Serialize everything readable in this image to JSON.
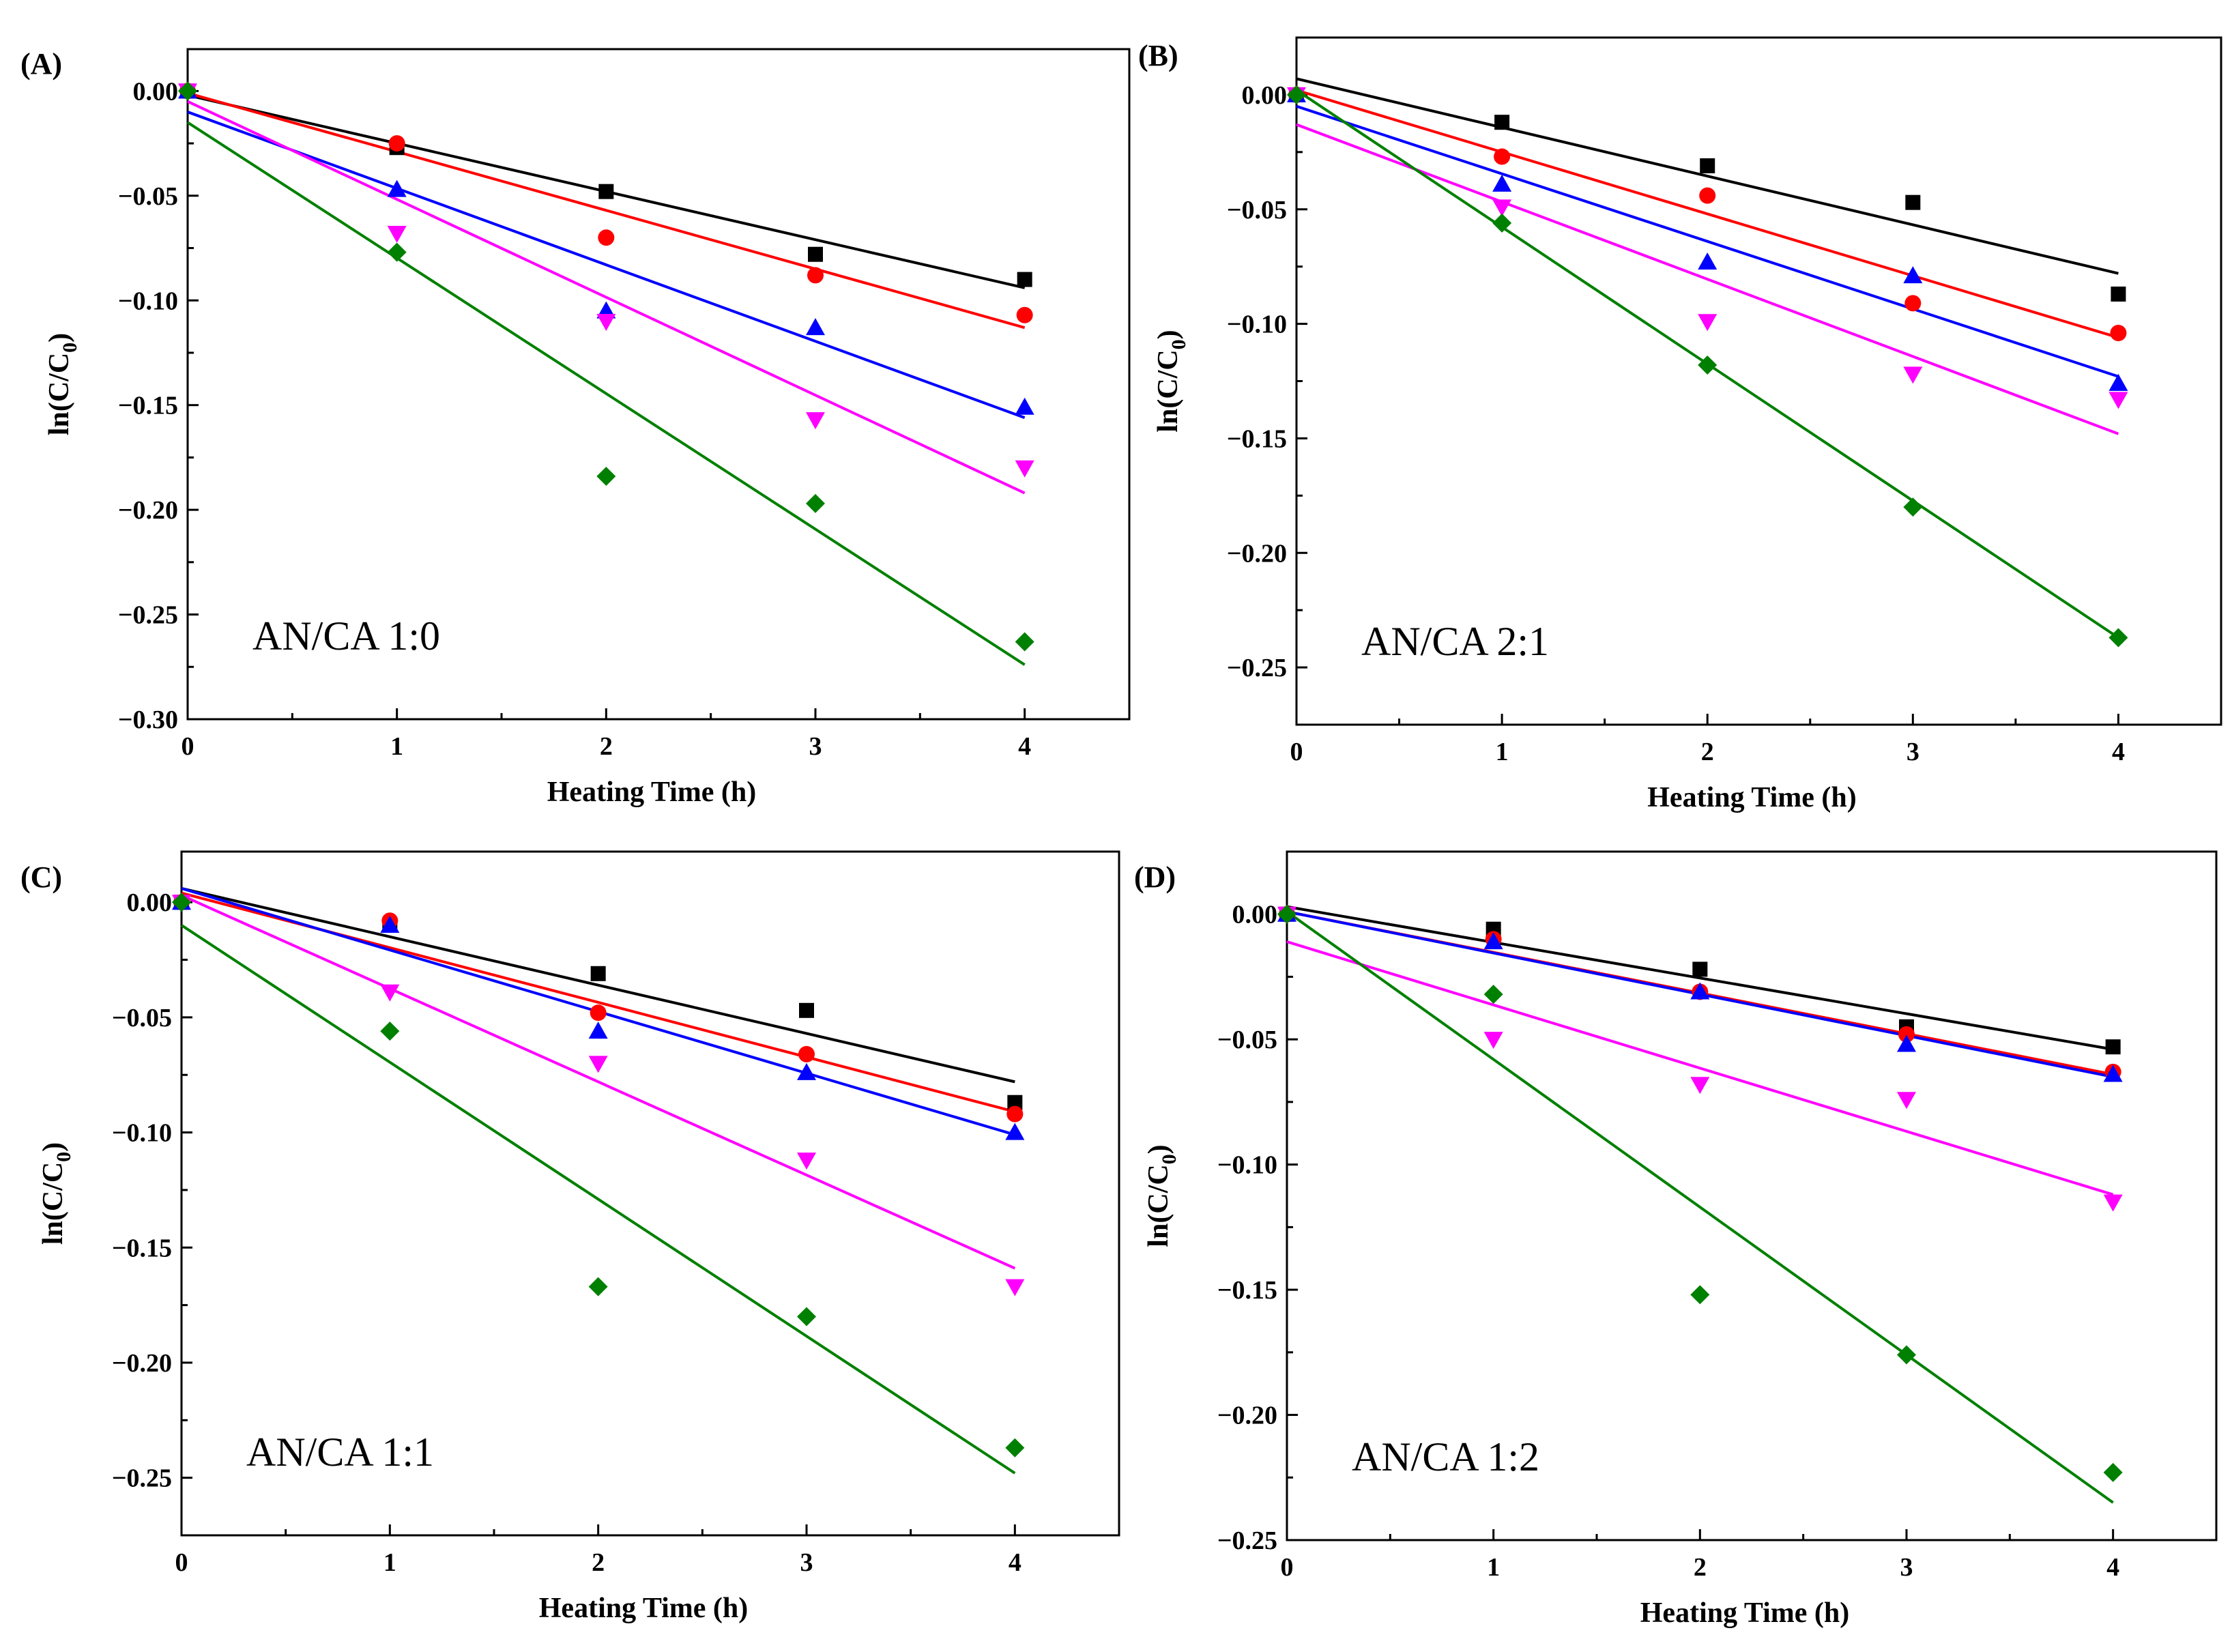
{
  "chart_data": [
    {
      "type": "scatter",
      "panel_tag": "(A)",
      "panel_label": "AN/CA 1:0",
      "xlabel": "Heating Time (h)",
      "ylabel": "ln(C/C0)",
      "ylabel_parts": {
        "main": "ln(C/C",
        "sub": "0",
        "close": ")"
      },
      "xlim": [
        0,
        4.5
      ],
      "ylim": [
        -0.3,
        0.02
      ],
      "xticks": [
        0,
        1,
        2,
        3,
        4
      ],
      "xtick_labels": [
        "0",
        "1",
        "2",
        "3",
        "4"
      ],
      "yticks": [
        0.0,
        -0.05,
        -0.1,
        -0.15,
        -0.2,
        -0.25,
        -0.3
      ],
      "ytick_labels": [
        "0.00",
        "−0.05",
        "−0.10",
        "−0.15",
        "−0.20",
        "−0.25",
        "−0.30"
      ],
      "x": [
        0,
        1,
        2,
        3,
        4
      ],
      "series": [
        {
          "name": "black-squares",
          "marker": "square",
          "color": "#000000",
          "values": [
            0.0,
            -0.027,
            -0.048,
            -0.078,
            -0.09
          ],
          "fit": [
            -0.002,
            -0.094
          ]
        },
        {
          "name": "red-circles",
          "marker": "circle",
          "color": "#ff0000",
          "values": [
            0.0,
            -0.025,
            -0.07,
            -0.088,
            -0.107
          ],
          "fit": [
            -0.001,
            -0.113
          ]
        },
        {
          "name": "blue-triangles",
          "marker": "triangle-up",
          "color": "#0000ff",
          "values": [
            0.0,
            -0.047,
            -0.105,
            -0.113,
            -0.151
          ],
          "fit": [
            -0.01,
            -0.156
          ]
        },
        {
          "name": "magenta-triangles",
          "marker": "triangle-down",
          "color": "#ff00ff",
          "values": [
            0.0,
            -0.068,
            -0.11,
            -0.157,
            -0.18
          ],
          "fit": [
            -0.005,
            -0.192
          ]
        },
        {
          "name": "green-diamonds",
          "marker": "diamond",
          "color": "#008000",
          "values": [
            0.0,
            -0.077,
            -0.184,
            -0.197,
            -0.263
          ],
          "fit": [
            -0.015,
            -0.274
          ]
        }
      ]
    },
    {
      "type": "scatter",
      "panel_tag": "(B)",
      "panel_label": "AN/CA 2:1",
      "xlabel": "Heating Time (h)",
      "ylabel": "ln(C/C0)",
      "ylabel_parts": {
        "main": "ln(C/C",
        "sub": "0",
        "close": ")"
      },
      "xlim": [
        0,
        4.5
      ],
      "ylim": [
        -0.275,
        0.025
      ],
      "xticks": [
        0,
        1,
        2,
        3,
        4
      ],
      "xtick_labels": [
        "0",
        "1",
        "2",
        "3",
        "4"
      ],
      "yticks": [
        0.0,
        -0.05,
        -0.1,
        -0.15,
        -0.2,
        -0.25
      ],
      "ytick_labels": [
        "0.00",
        "−0.05",
        "−0.10",
        "−0.15",
        "−0.20",
        "−0.25"
      ],
      "x": [
        0,
        1,
        2,
        3,
        4
      ],
      "series": [
        {
          "name": "black-squares",
          "marker": "square",
          "color": "#000000",
          "values": [
            0.0,
            -0.012,
            -0.031,
            -0.047,
            -0.087
          ],
          "fit": [
            0.007,
            -0.078
          ]
        },
        {
          "name": "red-circles",
          "marker": "circle",
          "color": "#ff0000",
          "values": [
            0.0,
            -0.027,
            -0.044,
            -0.091,
            -0.104
          ],
          "fit": [
            0.002,
            -0.106
          ]
        },
        {
          "name": "blue-triangles",
          "marker": "triangle-up",
          "color": "#0000ff",
          "values": [
            0.0,
            -0.039,
            -0.073,
            -0.079,
            -0.126
          ],
          "fit": [
            -0.005,
            -0.123
          ]
        },
        {
          "name": "magenta-triangles",
          "marker": "triangle-down",
          "color": "#ff00ff",
          "values": [
            0.0,
            -0.049,
            -0.099,
            -0.122,
            -0.133
          ],
          "fit": [
            -0.013,
            -0.148
          ]
        },
        {
          "name": "green-diamonds",
          "marker": "diamond",
          "color": "#008000",
          "values": [
            0.0,
            -0.056,
            -0.118,
            -0.18,
            -0.237
          ],
          "fit": [
            0.002,
            -0.237
          ]
        }
      ]
    },
    {
      "type": "scatter",
      "panel_tag": "(C)",
      "panel_label": "AN/CA 1:1",
      "xlabel": "Heating Time (h)",
      "ylabel": "ln(C/C0)",
      "ylabel_parts": {
        "main": "ln(C/C",
        "sub": "0",
        "close": ")"
      },
      "xlim": [
        0,
        4.5
      ],
      "ylim": [
        -0.275,
        0.022
      ],
      "xticks": [
        0,
        1,
        2,
        3,
        4
      ],
      "xtick_labels": [
        "0",
        "1",
        "2",
        "3",
        "4"
      ],
      "yticks": [
        0.0,
        -0.05,
        -0.1,
        -0.15,
        -0.2,
        -0.25
      ],
      "ytick_labels": [
        "0.00",
        "−0.05",
        "−0.10",
        "−0.15",
        "−0.20",
        "−0.25"
      ],
      "x": [
        0,
        1,
        2,
        3,
        4
      ],
      "series": [
        {
          "name": "black-squares",
          "marker": "square",
          "color": "#000000",
          "values": [
            0.0,
            -0.01,
            -0.031,
            -0.047,
            -0.087
          ],
          "fit": [
            0.006,
            -0.078
          ]
        },
        {
          "name": "red-circles",
          "marker": "circle",
          "color": "#ff0000",
          "values": [
            0.0,
            -0.008,
            -0.048,
            -0.066,
            -0.092
          ],
          "fit": [
            0.004,
            -0.091
          ]
        },
        {
          "name": "blue-triangles",
          "marker": "triangle-up",
          "color": "#0000ff",
          "values": [
            0.0,
            -0.01,
            -0.056,
            -0.074,
            -0.1
          ],
          "fit": [
            0.006,
            -0.101
          ]
        },
        {
          "name": "magenta-triangles",
          "marker": "triangle-down",
          "color": "#ff00ff",
          "values": [
            0.0,
            -0.039,
            -0.07,
            -0.112,
            -0.167
          ],
          "fit": [
            0.003,
            -0.159
          ]
        },
        {
          "name": "green-diamonds",
          "marker": "diamond",
          "color": "#008000",
          "values": [
            0.0,
            -0.056,
            -0.167,
            -0.18,
            -0.237
          ],
          "fit": [
            -0.01,
            -0.248
          ]
        }
      ]
    },
    {
      "type": "scatter",
      "panel_tag": "(D)",
      "panel_label": "AN/CA 1:2",
      "xlabel": "Heating Time (h)",
      "ylabel": "ln(C/C0)",
      "ylabel_parts": {
        "main": "ln(C/C",
        "sub": "0",
        "close": ")"
      },
      "xlim": [
        0,
        4.5
      ],
      "ylim": [
        -0.25,
        0.025
      ],
      "xticks": [
        0,
        1,
        2,
        3,
        4
      ],
      "xtick_labels": [
        "0",
        "1",
        "2",
        "3",
        "4"
      ],
      "yticks": [
        0.0,
        -0.05,
        -0.1,
        -0.15,
        -0.2,
        -0.25
      ],
      "ytick_labels": [
        "0.00",
        "−0.05",
        "−0.10",
        "−0.15",
        "−0.20",
        "−0.25"
      ],
      "x": [
        0,
        1,
        2,
        3,
        4
      ],
      "series": [
        {
          "name": "black-squares",
          "marker": "square",
          "color": "#000000",
          "values": [
            0.0,
            -0.006,
            -0.022,
            -0.045,
            -0.053
          ],
          "fit": [
            0.003,
            -0.054
          ]
        },
        {
          "name": "red-circles",
          "marker": "circle",
          "color": "#ff0000",
          "values": [
            0.0,
            -0.01,
            -0.031,
            -0.048,
            -0.063
          ],
          "fit": [
            0.001,
            -0.064
          ]
        },
        {
          "name": "blue-triangles",
          "marker": "triangle-up",
          "color": "#0000ff",
          "values": [
            0.0,
            -0.011,
            -0.031,
            -0.052,
            -0.064
          ],
          "fit": [
            0.001,
            -0.065
          ]
        },
        {
          "name": "magenta-triangles",
          "marker": "triangle-down",
          "color": "#ff00ff",
          "values": [
            0.0,
            -0.05,
            -0.068,
            -0.074,
            -0.115
          ],
          "fit": [
            -0.011,
            -0.112
          ]
        },
        {
          "name": "green-diamonds",
          "marker": "diamond",
          "color": "#008000",
          "values": [
            0.0,
            -0.032,
            -0.152,
            -0.176,
            -0.223
          ],
          "fit": [
            0.001,
            -0.235
          ]
        }
      ]
    }
  ]
}
